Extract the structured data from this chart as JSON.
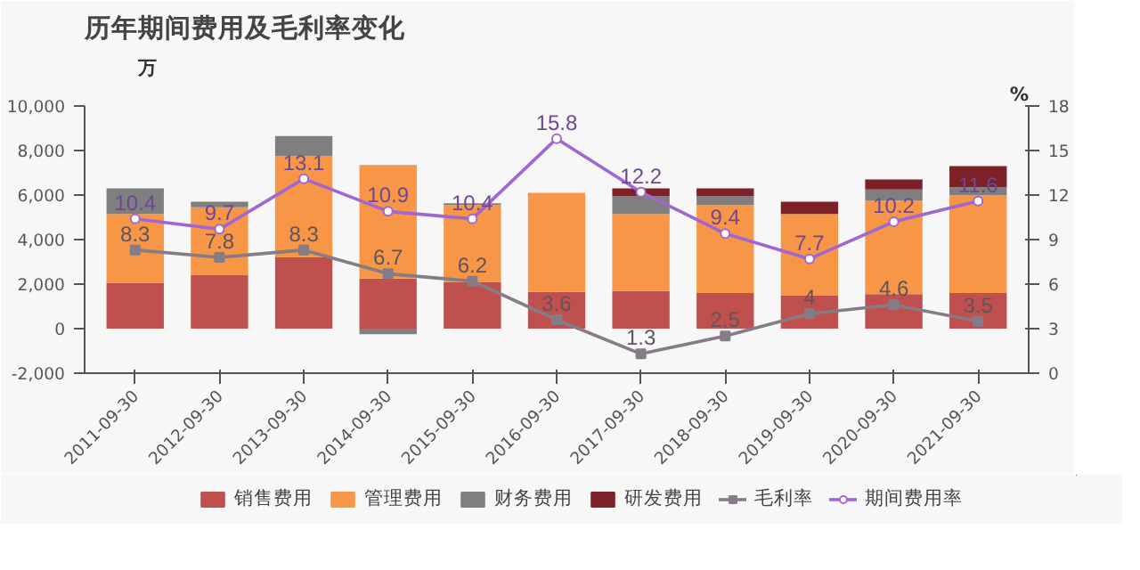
{
  "chart_data": {
    "type": "bar",
    "title": "历年期间费用及毛利率变化",
    "ylabel": "万",
    "y2label": "%",
    "categories": [
      "2011-09-30",
      "2012-09-30",
      "2013-09-30",
      "2014-09-30",
      "2015-09-30",
      "2016-09-30",
      "2017-09-30",
      "2018-09-30",
      "2019-09-30",
      "2020-09-30",
      "2021-09-30"
    ],
    "stacked": true,
    "series": [
      {
        "name": "销售费用",
        "color": "#c0504d",
        "values": [
          2050,
          2400,
          3200,
          2250,
          2100,
          1650,
          1700,
          1600,
          1500,
          1550,
          1600
        ]
      },
      {
        "name": "管理费用",
        "color": "#f79646",
        "values": [
          3100,
          3050,
          4550,
          5100,
          3450,
          4450,
          3450,
          3950,
          3650,
          4200,
          4400
        ]
      },
      {
        "name": "财务费用",
        "color": "#7f7f7f",
        "values": [
          1150,
          250,
          900,
          -250,
          80,
          0,
          800,
          400,
          0,
          500,
          350
        ]
      },
      {
        "name": "研发费用",
        "color": "#7b2127",
        "values": [
          0,
          0,
          0,
          0,
          0,
          0,
          350,
          350,
          550,
          450,
          950
        ]
      },
      {
        "name": "毛利率",
        "type": "line",
        "axis": "y2",
        "marker": "square",
        "color": "#857c87",
        "data_labels": true,
        "values": [
          8.3,
          7.8,
          8.3,
          6.7,
          6.2,
          3.6,
          1.3,
          2.5,
          4,
          4.6,
          3.5
        ]
      },
      {
        "name": "期间费用率",
        "type": "line",
        "axis": "y2",
        "marker": "circle",
        "color": "#a066d3",
        "data_labels": true,
        "values": [
          10.4,
          9.7,
          13.1,
          10.9,
          10.4,
          15.8,
          12.2,
          9.4,
          7.7,
          10.2,
          11.6
        ]
      }
    ],
    "ylim": [
      -2000,
      10000
    ],
    "yticks": [
      {
        "value": -2000,
        "label": "-2,000"
      },
      0,
      {
        "value": 2000,
        "label": "2,000"
      },
      {
        "value": 4000,
        "label": "4,000"
      },
      {
        "value": 6000,
        "label": "6,000"
      },
      {
        "value": 8000,
        "label": "8,000"
      },
      {
        "value": 10000,
        "label": "10,000"
      }
    ],
    "y2lim": [
      0,
      18
    ],
    "y2ticks": [
      0,
      3,
      6,
      9,
      12,
      15,
      18
    ],
    "grid": false,
    "legend": "bottom"
  }
}
